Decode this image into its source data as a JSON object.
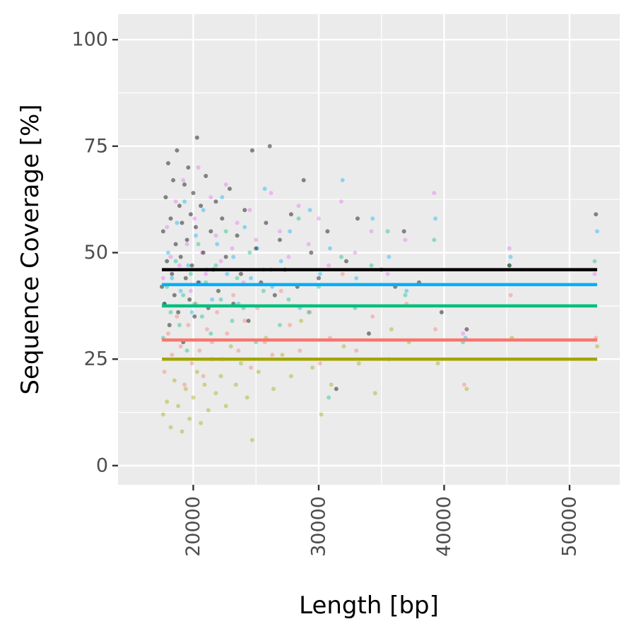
{
  "chart_data": {
    "type": "scatter",
    "xlabel": "Length [bp]",
    "ylabel": "Sequence Coverage [%]",
    "xlim": [
      14000,
      54000
    ],
    "ylim": [
      -4.5,
      106
    ],
    "x_ticks": [
      20000,
      30000,
      40000,
      50000
    ],
    "x_tick_labels": [
      "20000",
      "30000",
      "40000",
      "50000"
    ],
    "y_ticks": [
      0,
      25,
      50,
      75,
      100
    ],
    "y_tick_labels": [
      "0",
      "25",
      "50",
      "75",
      "100"
    ],
    "grid": true,
    "legend": "none",
    "series": [
      {
        "color": "#A3A500",
        "mean_line": 25,
        "points": [
          [
            17600,
            12
          ],
          [
            17900,
            15
          ],
          [
            18200,
            9
          ],
          [
            18500,
            20
          ],
          [
            18800,
            14
          ],
          [
            19100,
            8
          ],
          [
            19400,
            18
          ],
          [
            19700,
            11
          ],
          [
            20000,
            16
          ],
          [
            20300,
            22
          ],
          [
            20600,
            10
          ],
          [
            20900,
            19
          ],
          [
            21200,
            13
          ],
          [
            21500,
            25
          ],
          [
            21800,
            17
          ],
          [
            22200,
            21
          ],
          [
            22600,
            14
          ],
          [
            23000,
            28
          ],
          [
            23400,
            19
          ],
          [
            23800,
            24
          ],
          [
            24300,
            16
          ],
          [
            24700,
            6
          ],
          [
            25200,
            22
          ],
          [
            25800,
            30
          ],
          [
            26400,
            18
          ],
          [
            27100,
            26
          ],
          [
            27800,
            21
          ],
          [
            28600,
            34
          ],
          [
            29500,
            23
          ],
          [
            30200,
            12
          ],
          [
            31000,
            19
          ],
          [
            32000,
            28
          ],
          [
            33200,
            24
          ],
          [
            34500,
            17
          ],
          [
            35800,
            32
          ],
          [
            37200,
            29
          ],
          [
            39500,
            24
          ],
          [
            41800,
            18
          ],
          [
            45400,
            30
          ],
          [
            52200,
            28
          ]
        ]
      },
      {
        "color": "#F8766D",
        "mean_line": 29.5,
        "points": [
          [
            17700,
            22
          ],
          [
            18000,
            31
          ],
          [
            18300,
            26
          ],
          [
            18700,
            35
          ],
          [
            19000,
            28
          ],
          [
            19300,
            19
          ],
          [
            19600,
            33
          ],
          [
            19900,
            24
          ],
          [
            20200,
            38
          ],
          [
            20500,
            27
          ],
          [
            20800,
            21
          ],
          [
            21100,
            32
          ],
          [
            21500,
            29
          ],
          [
            21900,
            36
          ],
          [
            22300,
            25
          ],
          [
            22700,
            31
          ],
          [
            23200,
            40
          ],
          [
            23600,
            27
          ],
          [
            24100,
            34
          ],
          [
            24600,
            23
          ],
          [
            25100,
            37
          ],
          [
            25700,
            29
          ],
          [
            26300,
            26
          ],
          [
            27000,
            41
          ],
          [
            27700,
            33
          ],
          [
            28500,
            27
          ],
          [
            29300,
            36
          ],
          [
            30100,
            24
          ],
          [
            30900,
            30
          ],
          [
            31900,
            45
          ],
          [
            33000,
            27
          ],
          [
            34300,
            35
          ],
          [
            35600,
            25
          ],
          [
            37000,
            38
          ],
          [
            39300,
            32
          ],
          [
            41600,
            19
          ],
          [
            45300,
            40
          ],
          [
            52100,
            30
          ]
        ]
      },
      {
        "color": "#00BF7D",
        "mean_line": 37.5,
        "points": [
          [
            17600,
            30
          ],
          [
            17900,
            42
          ],
          [
            18200,
            36
          ],
          [
            18600,
            48
          ],
          [
            18900,
            33
          ],
          [
            19200,
            40
          ],
          [
            19500,
            27
          ],
          [
            19800,
            45
          ],
          [
            20100,
            38
          ],
          [
            20400,
            52
          ],
          [
            20700,
            35
          ],
          [
            21000,
            43
          ],
          [
            21400,
            31
          ],
          [
            21800,
            47
          ],
          [
            22200,
            39
          ],
          [
            22600,
            55
          ],
          [
            23100,
            34
          ],
          [
            23500,
            44
          ],
          [
            24000,
            37
          ],
          [
            24500,
            50
          ],
          [
            25000,
            29
          ],
          [
            25600,
            41
          ],
          [
            26200,
            46
          ],
          [
            26900,
            33
          ],
          [
            27600,
            39
          ],
          [
            28400,
            58
          ],
          [
            29200,
            36
          ],
          [
            30000,
            42
          ],
          [
            30800,
            16
          ],
          [
            31800,
            49
          ],
          [
            32900,
            37
          ],
          [
            34200,
            47
          ],
          [
            35500,
            55
          ],
          [
            36900,
            40
          ],
          [
            39200,
            53
          ],
          [
            41500,
            29
          ],
          [
            45200,
            47
          ],
          [
            52000,
            48
          ]
        ]
      },
      {
        "color": "#00B0F6",
        "mean_line": 42.5,
        "points": [
          [
            17700,
            38
          ],
          [
            18000,
            50
          ],
          [
            18300,
            44
          ],
          [
            18700,
            57
          ],
          [
            19000,
            41
          ],
          [
            19300,
            62
          ],
          [
            19600,
            47
          ],
          [
            19900,
            36
          ],
          [
            20200,
            54
          ],
          [
            20500,
            43
          ],
          [
            20800,
            60
          ],
          [
            21100,
            46
          ],
          [
            21500,
            39
          ],
          [
            21900,
            52
          ],
          [
            22300,
            63
          ],
          [
            22700,
            45
          ],
          [
            23200,
            49
          ],
          [
            23600,
            38
          ],
          [
            24100,
            56
          ],
          [
            24600,
            44
          ],
          [
            25100,
            51
          ],
          [
            25700,
            65
          ],
          [
            26300,
            42
          ],
          [
            27000,
            48
          ],
          [
            27700,
            55
          ],
          [
            28500,
            37
          ],
          [
            29300,
            60
          ],
          [
            30100,
            45
          ],
          [
            30900,
            51
          ],
          [
            31900,
            67
          ],
          [
            33000,
            44
          ],
          [
            34300,
            58
          ],
          [
            35600,
            49
          ],
          [
            37000,
            41
          ],
          [
            39300,
            58
          ],
          [
            41700,
            30
          ],
          [
            45300,
            49
          ],
          [
            52200,
            55
          ]
        ]
      },
      {
        "color": "#E76BF3",
        "mean_line": 46,
        "points": [
          [
            17600,
            44
          ],
          [
            17900,
            56
          ],
          [
            18200,
            49
          ],
          [
            18600,
            62
          ],
          [
            18900,
            47
          ],
          [
            19200,
            67
          ],
          [
            19500,
            52
          ],
          [
            19800,
            41
          ],
          [
            20100,
            58
          ],
          [
            20400,
            70
          ],
          [
            20700,
            50
          ],
          [
            21000,
            45
          ],
          [
            21400,
            63
          ],
          [
            21800,
            54
          ],
          [
            22200,
            48
          ],
          [
            22600,
            66
          ],
          [
            23100,
            51
          ],
          [
            23500,
            57
          ],
          [
            24000,
            43
          ],
          [
            24500,
            60
          ],
          [
            25000,
            53
          ],
          [
            25600,
            46
          ],
          [
            26200,
            64
          ],
          [
            26900,
            55
          ],
          [
            27600,
            49
          ],
          [
            28400,
            61
          ],
          [
            29200,
            52
          ],
          [
            30000,
            58
          ],
          [
            30800,
            47
          ],
          [
            31800,
            62
          ],
          [
            32900,
            50
          ],
          [
            34200,
            55
          ],
          [
            35500,
            45
          ],
          [
            36900,
            53
          ],
          [
            39200,
            64
          ],
          [
            41500,
            31
          ],
          [
            45200,
            51
          ],
          [
            52000,
            45
          ]
        ]
      },
      {
        "color": "#000000",
        "mean_line": 46,
        "points": [
          [
            17500,
            42
          ],
          [
            17600,
            55
          ],
          [
            17700,
            38
          ],
          [
            17800,
            63
          ],
          [
            17900,
            48
          ],
          [
            18000,
            71
          ],
          [
            18100,
            33
          ],
          [
            18200,
            58
          ],
          [
            18300,
            45
          ],
          [
            18400,
            67
          ],
          [
            18500,
            40
          ],
          [
            18600,
            52
          ],
          [
            18700,
            74
          ],
          [
            18800,
            36
          ],
          [
            18900,
            61
          ],
          [
            19000,
            49
          ],
          [
            19100,
            57
          ],
          [
            19200,
            29
          ],
          [
            19300,
            66
          ],
          [
            19400,
            44
          ],
          [
            19500,
            53
          ],
          [
            19600,
            70
          ],
          [
            19700,
            39
          ],
          [
            19800,
            59
          ],
          [
            19900,
            47
          ],
          [
            20000,
            64
          ],
          [
            20100,
            35
          ],
          [
            20200,
            56
          ],
          [
            20300,
            77
          ],
          [
            20400,
            43
          ],
          [
            20600,
            61
          ],
          [
            20800,
            50
          ],
          [
            21000,
            68
          ],
          [
            21200,
            37
          ],
          [
            21400,
            55
          ],
          [
            21600,
            46
          ],
          [
            21800,
            62
          ],
          [
            22000,
            41
          ],
          [
            22300,
            58
          ],
          [
            22600,
            49
          ],
          [
            22900,
            65
          ],
          [
            23200,
            38
          ],
          [
            23500,
            54
          ],
          [
            23800,
            45
          ],
          [
            24100,
            60
          ],
          [
            24400,
            34
          ],
          [
            24700,
            74
          ],
          [
            25000,
            51
          ],
          [
            25400,
            43
          ],
          [
            25800,
            57
          ],
          [
            26100,
            75
          ],
          [
            26500,
            40
          ],
          [
            26900,
            53
          ],
          [
            27300,
            46
          ],
          [
            27800,
            59
          ],
          [
            28300,
            42
          ],
          [
            28800,
            67
          ],
          [
            29400,
            50
          ],
          [
            30000,
            44
          ],
          [
            30700,
            55
          ],
          [
            31400,
            18
          ],
          [
            32200,
            48
          ],
          [
            33100,
            58
          ],
          [
            34000,
            31
          ],
          [
            35000,
            46
          ],
          [
            36100,
            42
          ],
          [
            36800,
            55
          ],
          [
            38000,
            43
          ],
          [
            39800,
            36
          ],
          [
            41800,
            32
          ],
          [
            45200,
            47
          ],
          [
            52100,
            59
          ]
        ]
      }
    ]
  }
}
